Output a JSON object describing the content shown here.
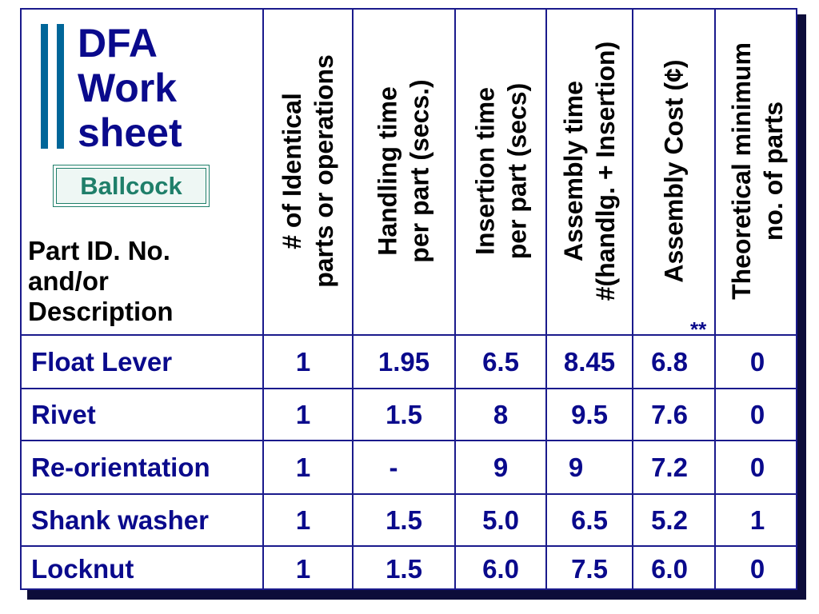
{
  "title": {
    "line1": "DFA",
    "line2": "Work",
    "line3": "sheet"
  },
  "badge": "Ballcock",
  "part_header": {
    "line1": "Part ID. No.",
    "line2": "and/or",
    "line3": "Description"
  },
  "columns": [
    {
      "line1": "# of Identical",
      "line2": "parts or operations"
    },
    {
      "line1": "Handling time",
      "line2": "per part (secs.)"
    },
    {
      "line1": "Insertion time",
      "line2": "per part (secs)"
    },
    {
      "line1": "Assembly time",
      "line2": "#(handlg. + Insertion)"
    },
    {
      "line1": "Assembly Cost (¢)",
      "line2": ""
    },
    {
      "line1": "Theoretical minimum",
      "line2": "no. of parts"
    }
  ],
  "footnote_marker": "**",
  "rows": [
    {
      "name": "Float Lever",
      "values": [
        "1",
        "1.95",
        "6.5",
        "8.45",
        "6.8",
        "0"
      ]
    },
    {
      "name": "Rivet",
      "values": [
        "1",
        "1.5",
        "8",
        "9.5",
        "7.6",
        "0"
      ]
    },
    {
      "name": "Re-orientation",
      "values": [
        "1",
        "-",
        "9",
        "9",
        "7.2",
        "0"
      ]
    },
    {
      "name": "Shank washer",
      "values": [
        "1",
        "1.5",
        "5.0",
        "6.5",
        "5.2",
        "1"
      ]
    },
    {
      "name": "Locknut",
      "values": [
        "1",
        "1.5",
        "6.0",
        "7.5",
        "6.0",
        "0"
      ]
    }
  ]
}
